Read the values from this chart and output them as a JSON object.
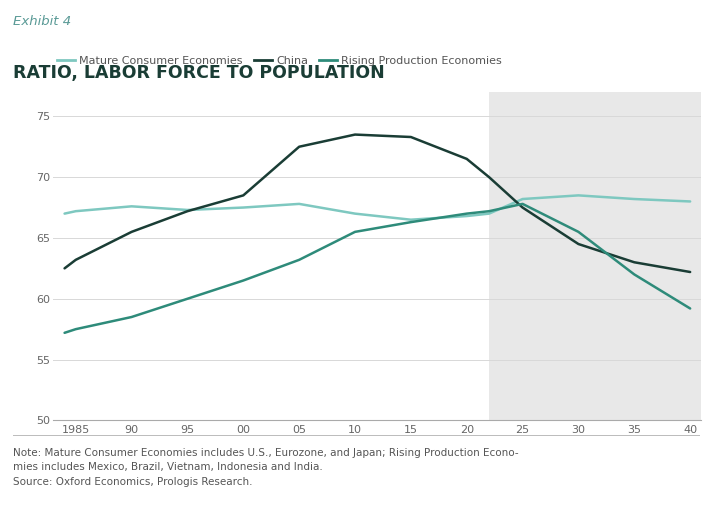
{
  "title": "RATIO, LABOR FORCE TO POPULATION",
  "exhibit_label": "Exhibit 4",
  "background_color": "#ffffff",
  "header_bg_color": "#dfe0e0",
  "forecast_bg_color": "#e8e8e8",
  "forecast_start_year": 2022,
  "x_ticks": [
    1985,
    1990,
    1995,
    2000,
    2005,
    2010,
    2015,
    2020,
    2025,
    2030,
    2035,
    2040
  ],
  "x_tick_labels": [
    "1985",
    "90",
    "95",
    "00",
    "05",
    "10",
    "15",
    "20",
    "25",
    "30",
    "35",
    "40"
  ],
  "ylim": [
    50,
    77
  ],
  "y_ticks": [
    50,
    55,
    60,
    65,
    70,
    75
  ],
  "series": [
    {
      "name": "Mature Consumer Economies",
      "color": "#7ec8c0",
      "linewidth": 1.8,
      "x": [
        1984,
        1985,
        1990,
        1995,
        2000,
        2005,
        2010,
        2015,
        2020,
        2022,
        2025,
        2030,
        2035,
        2040
      ],
      "y": [
        67.0,
        67.2,
        67.6,
        67.3,
        67.5,
        67.8,
        67.0,
        66.5,
        66.8,
        67.0,
        68.2,
        68.5,
        68.2,
        68.0
      ]
    },
    {
      "name": "China",
      "color": "#1a3d35",
      "linewidth": 1.8,
      "x": [
        1984,
        1985,
        1990,
        1995,
        2000,
        2005,
        2010,
        2015,
        2020,
        2022,
        2025,
        2030,
        2035,
        2040
      ],
      "y": [
        62.5,
        63.2,
        65.5,
        67.2,
        68.5,
        72.5,
        73.5,
        73.3,
        71.5,
        70.0,
        67.5,
        64.5,
        63.0,
        62.2
      ]
    },
    {
      "name": "Rising Production Economies",
      "color": "#2e8b7a",
      "linewidth": 1.8,
      "x": [
        1984,
        1985,
        1990,
        1995,
        2000,
        2005,
        2010,
        2015,
        2020,
        2022,
        2025,
        2030,
        2035,
        2040
      ],
      "y": [
        57.2,
        57.5,
        58.5,
        60.0,
        61.5,
        63.2,
        65.5,
        66.3,
        67.0,
        67.2,
        67.8,
        65.5,
        62.0,
        59.2
      ]
    }
  ],
  "note_text": "Note: Mature Consumer Economies includes U.S., Eurozone, and Japan; Rising Production Econo-\nmies includes Mexico, Brazil, Vietnam, Indonesia and India.\nSource: Oxford Economics, Prologis Research.",
  "legend_colors": [
    "#7ec8c0",
    "#1a3d35",
    "#2e8b7a"
  ],
  "legend_labels": [
    "Mature Consumer Economies",
    "China",
    "Rising Production Economies"
  ]
}
